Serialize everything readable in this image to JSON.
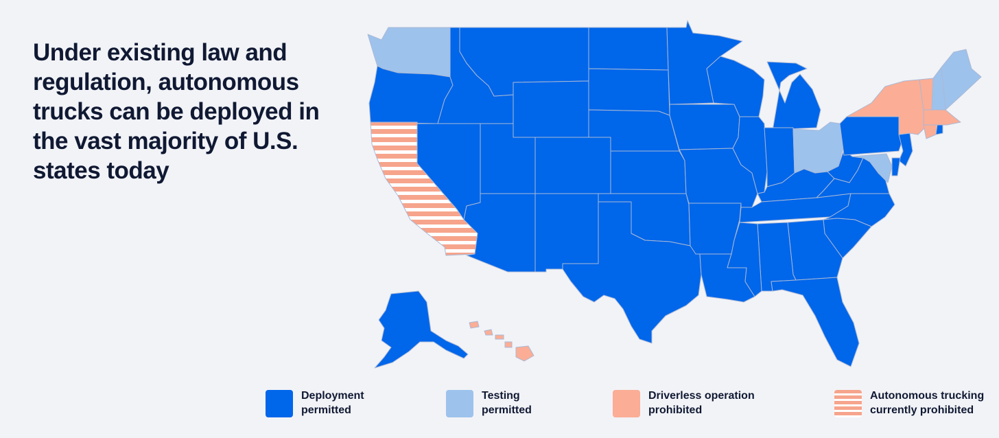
{
  "headline": "Under existing law and regulation, autonomous trucks can be deployed in the vast majority of U.S. states today",
  "colors": {
    "deployment": "#0066ea",
    "testing": "#9dc2ec",
    "driverless_prohibited": "#fbad95",
    "trucking_prohibited_stripe": "#f6a48c",
    "trucking_prohibited_bg": "#ffffff",
    "border": "#aab9d6",
    "text": "#101933",
    "background": "#f2f3f7"
  },
  "legend": [
    {
      "key": "deployment",
      "label": "Deployment\npermitted"
    },
    {
      "key": "testing",
      "label": "Testing\npermitted"
    },
    {
      "key": "driverless",
      "label": "Driverless operation\nprohibited"
    },
    {
      "key": "trucking",
      "label": "Autonomous trucking\ncurrently prohibited"
    }
  ],
  "map_data": {
    "deployment_permitted": [
      "Oregon",
      "Idaho",
      "Montana",
      "Wyoming",
      "Nevada",
      "Utah",
      "Colorado",
      "Arizona",
      "New Mexico",
      "North Dakota",
      "South Dakota",
      "Nebraska",
      "Kansas",
      "Oklahoma",
      "Texas",
      "Minnesota",
      "Iowa",
      "Missouri",
      "Arkansas",
      "Louisiana",
      "Wisconsin",
      "Illinois",
      "Michigan",
      "Indiana",
      "Kentucky",
      "Tennessee",
      "Mississippi",
      "Alabama",
      "Georgia",
      "Florida",
      "South Carolina",
      "North Carolina",
      "Virginia",
      "West Virginia",
      "Pennsylvania",
      "New Jersey",
      "Delaware",
      "Rhode Island",
      "Alaska"
    ],
    "testing_permitted": [
      "Washington",
      "Ohio",
      "Maryland",
      "Maine",
      "New Hampshire"
    ],
    "driverless_operation_prohibited": [
      "New York",
      "Vermont",
      "Massachusetts",
      "Connecticut",
      "Hawaii"
    ],
    "autonomous_trucking_currently_prohibited": [
      "California"
    ]
  }
}
